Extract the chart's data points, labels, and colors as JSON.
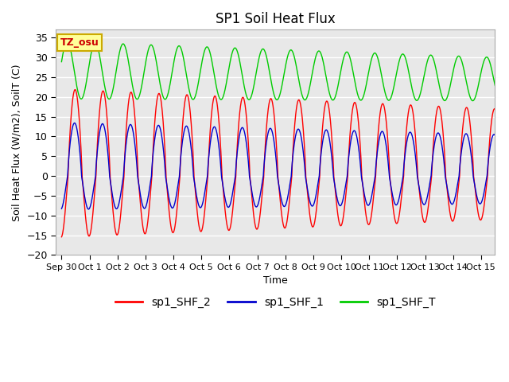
{
  "title": "SP1 Soil Heat Flux",
  "xlabel": "Time",
  "ylabel": "Soil Heat Flux (W/m2), SoilT (C)",
  "ylim": [
    -20,
    37
  ],
  "yticks": [
    -20,
    -15,
    -10,
    -5,
    0,
    5,
    10,
    15,
    20,
    25,
    30,
    35
  ],
  "xlim": [
    -0.2,
    15.5
  ],
  "xtick_labels": [
    "Sep 30",
    "Oct 1",
    "Oct 2",
    "Oct 3",
    "Oct 4",
    "Oct 5",
    "Oct 6",
    "Oct 7",
    "Oct 8",
    "Oct 9",
    "Oct 10",
    "Oct 11",
    "Oct 12",
    "Oct 13",
    "Oct 14",
    "Oct 15"
  ],
  "xtick_positions": [
    0,
    1,
    2,
    3,
    4,
    5,
    6,
    7,
    8,
    9,
    10,
    11,
    12,
    13,
    14,
    15
  ],
  "color_red": "#FF0000",
  "color_blue": "#0000CD",
  "color_green": "#00CC00",
  "annotation_text": "TZ_osu",
  "annotation_bg": "#FFFF99",
  "annotation_border": "#CCAA00",
  "legend_labels": [
    "sp1_SHF_2",
    "sp1_SHF_1",
    "sp1_SHF_T"
  ],
  "plot_bg": "#E8E8E8",
  "title_fontsize": 12,
  "axis_label_fontsize": 9,
  "tick_fontsize": 9,
  "n_points": 3000
}
